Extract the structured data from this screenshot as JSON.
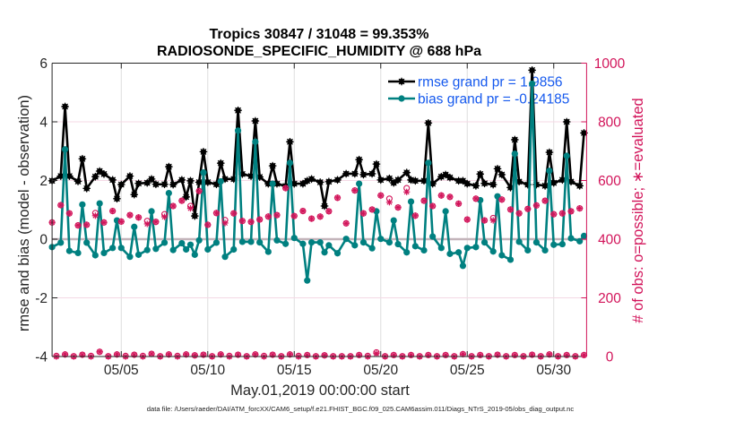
{
  "chart_data": {
    "type": "line",
    "title": [
      "Tropics 30847 / 31048 = 99.353%",
      "RADIOSONDE_SPECIFIC_HUMIDITY @ 688 hPa"
    ],
    "xlabel": "May.01,2019 00:00:00 start",
    "ylabel": "rmse and bias (model - observation)",
    "ylabel_right": "# of obs: o=possible; ∗=evaluated",
    "x_units": "days since 2019-05-01 00:00:00 (6-hour bins)",
    "xlim": [
      0,
      30.9
    ],
    "ylim_left": [
      -4,
      6
    ],
    "ylim_right": [
      0,
      1000
    ],
    "zero_line": 0,
    "grid": true,
    "right_axis_color": "#d2145a",
    "xticks": [
      {
        "value": 4,
        "label": "05/05"
      },
      {
        "value": 9,
        "label": "05/10"
      },
      {
        "value": 14,
        "label": "05/15"
      },
      {
        "value": 19,
        "label": "05/20"
      },
      {
        "value": 24,
        "label": "05/25"
      },
      {
        "value": 29,
        "label": "05/30"
      }
    ],
    "yticks_left": [
      {
        "value": -4,
        "label": "-4"
      },
      {
        "value": -2,
        "label": "-2"
      },
      {
        "value": 0,
        "label": "0"
      },
      {
        "value": 2,
        "label": "2"
      },
      {
        "value": 4,
        "label": "4"
      },
      {
        "value": 6,
        "label": "6"
      }
    ],
    "yticks_right": [
      {
        "value": 0,
        "label": "0"
      },
      {
        "value": 200,
        "label": "200"
      },
      {
        "value": 400,
        "label": "400"
      },
      {
        "value": 600,
        "label": "600"
      },
      {
        "value": 800,
        "label": "800"
      },
      {
        "value": 1000,
        "label": "1000"
      }
    ],
    "legend": {
      "placement": "top-right",
      "text_color": "#1559ee",
      "entries": [
        {
          "label": "rmse grand pr = 1.9856",
          "series": "rmse"
        },
        {
          "label": "bias grand pr = -0.24185",
          "series": "bias"
        }
      ]
    },
    "x": [
      0,
      0.25,
      0.5,
      0.75,
      1,
      1.25,
      1.5,
      1.75,
      2,
      2.25,
      2.5,
      2.75,
      3,
      3.25,
      3.5,
      3.75,
      4,
      4.25,
      4.5,
      4.75,
      5,
      5.25,
      5.5,
      5.75,
      6,
      6.25,
      6.5,
      6.75,
      7,
      7.25,
      7.5,
      7.75,
      8,
      8.25,
      8.5,
      8.75,
      9,
      9.25,
      9.5,
      9.75,
      10,
      10.25,
      10.5,
      10.75,
      11,
      11.25,
      11.5,
      11.75,
      12,
      12.25,
      12.5,
      12.75,
      13,
      13.25,
      13.5,
      13.75,
      14,
      14.25,
      14.5,
      14.75,
      15,
      15.25,
      15.5,
      15.75,
      16,
      16.25,
      16.5,
      16.75,
      17,
      17.25,
      17.5,
      17.75,
      18,
      18.25,
      18.5,
      18.75,
      19,
      19.25,
      19.5,
      19.75,
      20,
      20.25,
      20.5,
      20.75,
      21,
      21.25,
      21.5,
      21.75,
      22,
      22.25,
      22.5,
      22.75,
      23,
      23.25,
      23.5,
      23.75,
      24,
      24.25,
      24.5,
      24.75,
      25,
      25.25,
      25.5,
      25.75,
      26,
      26.25,
      26.5,
      26.75,
      27,
      27.25,
      27.5,
      27.75,
      28,
      28.25,
      28.5,
      28.75,
      29,
      29.25,
      29.5,
      29.75,
      30,
      30.25,
      30.5,
      30.75
    ],
    "series": [
      {
        "name": "rmse",
        "axis": "left",
        "color": "#000000",
        "marker": "filled-asterisk",
        "values": [
          1.99,
          null,
          2.15,
          4.52,
          2.15,
          null,
          1.97,
          2.74,
          1.73,
          null,
          2.13,
          2.32,
          2.22,
          null,
          2.02,
          1.38,
          1.86,
          null,
          2.15,
          1.52,
          1.9,
          null,
          1.92,
          2.05,
          1.87,
          null,
          1.87,
          2.47,
          1.86,
          null,
          2.02,
          1.44,
          1.99,
          0.79,
          1.94,
          2.98,
          1.94,
          null,
          1.87,
          2.59,
          2.05,
          null,
          2.05,
          4.39,
          2.22,
          null,
          2.15,
          4.03,
          2.12,
          null,
          1.89,
          2.5,
          1.89,
          null,
          1.81,
          3.32,
          1.89,
          null,
          1.89,
          1.99,
          2.05,
          null,
          1.94,
          1.13,
          1.96,
          null,
          2.02,
          null,
          2.23,
          null,
          2.23,
          2.71,
          2.2,
          null,
          2.23,
          2.56,
          2.02,
          null,
          2.07,
          1.92,
          2.02,
          null,
          2.27,
          2.02,
          1.99,
          null,
          1.99,
          3.96,
          1.89,
          null,
          2.13,
          2.2,
          2.1,
          null,
          1.99,
          1.99,
          1.89,
          null,
          1.82,
          2.22,
          1.9,
          null,
          1.86,
          2.4,
          2.2,
          null,
          1.76,
          3.39,
          1.96,
          null,
          1.86,
          5.76,
          1.86,
          null,
          1.82,
          2.96,
          1.92,
          null,
          2.02,
          4.0,
          1.96,
          null,
          1.82,
          3.62
        ]
      },
      {
        "name": "bias",
        "axis": "left",
        "color": "#008080",
        "marker": "filled-circle",
        "values": [
          -0.27,
          null,
          -0.12,
          3.06,
          -0.4,
          null,
          -0.47,
          1.18,
          -0.12,
          null,
          -0.55,
          1.22,
          -0.47,
          null,
          -0.3,
          0.64,
          -0.3,
          null,
          -0.6,
          0.42,
          -0.53,
          null,
          -0.37,
          0.95,
          -0.33,
          null,
          -0.12,
          1.57,
          -0.37,
          null,
          -0.14,
          -0.35,
          -0.19,
          -0.53,
          -0.04,
          2.27,
          -0.35,
          null,
          -0.12,
          1.97,
          -0.6,
          null,
          -0.35,
          3.7,
          -0.09,
          null,
          -0.09,
          3.32,
          -0.11,
          null,
          -0.43,
          1.89,
          -0.04,
          null,
          -0.16,
          2.6,
          0.04,
          null,
          -0.16,
          -1.41,
          -0.11,
          null,
          -0.11,
          -0.45,
          -0.21,
          null,
          -0.48,
          null,
          0.01,
          null,
          -0.21,
          1.89,
          -0.11,
          null,
          -0.31,
          0.95,
          0.01,
          null,
          -0.11,
          0.64,
          -0.17,
          null,
          -0.45,
          1.28,
          -0.24,
          null,
          -0.38,
          2.6,
          0.09,
          null,
          -0.3,
          0.95,
          -0.5,
          null,
          -0.45,
          -0.91,
          -0.3,
          null,
          -0.27,
          1.33,
          -0.11,
          null,
          -0.42,
          1.46,
          -0.55,
          null,
          -0.7,
          2.91,
          -0.09,
          null,
          -0.38,
          5.3,
          -0.11,
          null,
          -0.38,
          2.33,
          -0.19,
          null,
          -0.17,
          2.84,
          0.03,
          null,
          -0.07,
          0.11
        ]
      },
      {
        "name": "obs_possible",
        "axis": "right",
        "color": "#d2145a",
        "marker": "o",
        "values": [
          457,
          2,
          516,
          7,
          488,
          1,
          447,
          6,
          449,
          2,
          489,
          16,
          457,
          1,
          496,
          7,
          460,
          2,
          482,
          6,
          474,
          2,
          462,
          9,
          459,
          1,
          485,
          7,
          513,
          2,
          531,
          7,
          513,
          4,
          564,
          6,
          449,
          1,
          489,
          7,
          465,
          2,
          488,
          6,
          462,
          1,
          459,
          7,
          467,
          2,
          477,
          6,
          482,
          1,
          574,
          7,
          479,
          2,
          496,
          5,
          470,
          1,
          477,
          4,
          495,
          1,
          541,
          1,
          454,
          1,
          566,
          5,
          488,
          2,
          501,
          14,
          549,
          1,
          538,
          5,
          508,
          1,
          574,
          5,
          480,
          1,
          531,
          5,
          513,
          1,
          549,
          5,
          544,
          1,
          521,
          8,
          467,
          1,
          538,
          5,
          464,
          1,
          472,
          6,
          535,
          1,
          501,
          5,
          488,
          1,
          503,
          6,
          515,
          1,
          531,
          7,
          485,
          1,
          488,
          5,
          495,
          1,
          505,
          5
        ]
      },
      {
        "name": "obs_evaluated",
        "axis": "right",
        "color": "#d2145a",
        "marker": "*",
        "values": [
          457,
          0,
          516,
          7,
          488,
          0,
          447,
          6,
          449,
          0,
          480,
          16,
          457,
          0,
          496,
          7,
          460,
          0,
          482,
          6,
          474,
          0,
          452,
          9,
          459,
          0,
          476,
          7,
          513,
          0,
          531,
          7,
          505,
          4,
          564,
          6,
          449,
          0,
          489,
          7,
          455,
          0,
          488,
          6,
          462,
          0,
          459,
          7,
          467,
          0,
          477,
          6,
          482,
          0,
          574,
          7,
          479,
          0,
          496,
          5,
          470,
          0,
          477,
          4,
          495,
          0,
          541,
          0,
          454,
          0,
          566,
          5,
          488,
          0,
          501,
          10,
          549,
          0,
          526,
          5,
          508,
          0,
          561,
          5,
          480,
          0,
          531,
          5,
          513,
          0,
          549,
          5,
          544,
          0,
          521,
          8,
          467,
          0,
          538,
          5,
          464,
          0,
          464,
          6,
          535,
          0,
          501,
          5,
          488,
          0,
          503,
          6,
          515,
          0,
          531,
          7,
          485,
          0,
          488,
          5,
          495,
          0,
          505,
          5
        ]
      }
    ]
  },
  "footer": {
    "data_file": "data file: /Users/raeder/DAI/ATM_forcXX/CAM6_setup/f.e21.FHIST_BGC.f09_025.CAM6assim.011/Diags_NTrS_2019-05/obs_diag_output.nc"
  }
}
